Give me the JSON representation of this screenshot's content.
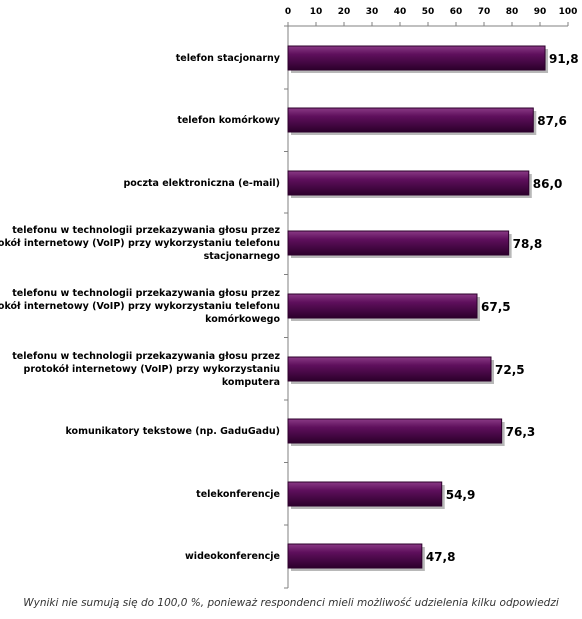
{
  "chart_data": {
    "type": "bar",
    "orientation": "horizontal",
    "categories": [
      [
        "telefon stacjonarny"
      ],
      [
        "telefon komórkowy"
      ],
      [
        "poczta elektroniczna (e-mail)"
      ],
      [
        "telefonu w technologii przekazywania głosu przez",
        "protokół internetowy (VoIP) przy wykorzystaniu telefonu",
        "stacjonarnego"
      ],
      [
        "telefonu w technologii przekazywania głosu przez",
        "protokół internetowy (VoIP) przy wykorzystaniu telefonu",
        "komórkowego"
      ],
      [
        "telefonu w technologii przekazywania głosu przez",
        "protokół internetowy (VoIP) przy wykorzystaniu",
        "komputera"
      ],
      [
        "komunikatory tekstowe (np. GaduGadu)"
      ],
      [
        "telekonferencje"
      ],
      [
        "wideokonferencje"
      ]
    ],
    "values": [
      91.8,
      87.6,
      86.0,
      78.8,
      67.5,
      72.5,
      76.3,
      54.9,
      47.8
    ],
    "value_labels": [
      "91,8",
      "87,6",
      "86,0",
      "78,8",
      "67,5",
      "72,5",
      "76,3",
      "54,9",
      "47,8"
    ],
    "xlim": [
      0,
      100
    ],
    "ticks": [
      "0",
      "10",
      "20",
      "30",
      "40",
      "50",
      "60",
      "70",
      "80",
      "90",
      "100"
    ],
    "axis_position": "top",
    "grid": false,
    "colors": {
      "bar_fill": "#5e0f5c",
      "bar_highlight": "#8a3a86",
      "bar_edge": "#2c002b",
      "shadow": "#b8b8b8",
      "axis": "#808080",
      "text": "#000000"
    }
  },
  "footnote": "Wyniki nie sumują się do 100,0 %, ponieważ respondenci mieli możliwość udzielenia kilku odpowiedzi"
}
